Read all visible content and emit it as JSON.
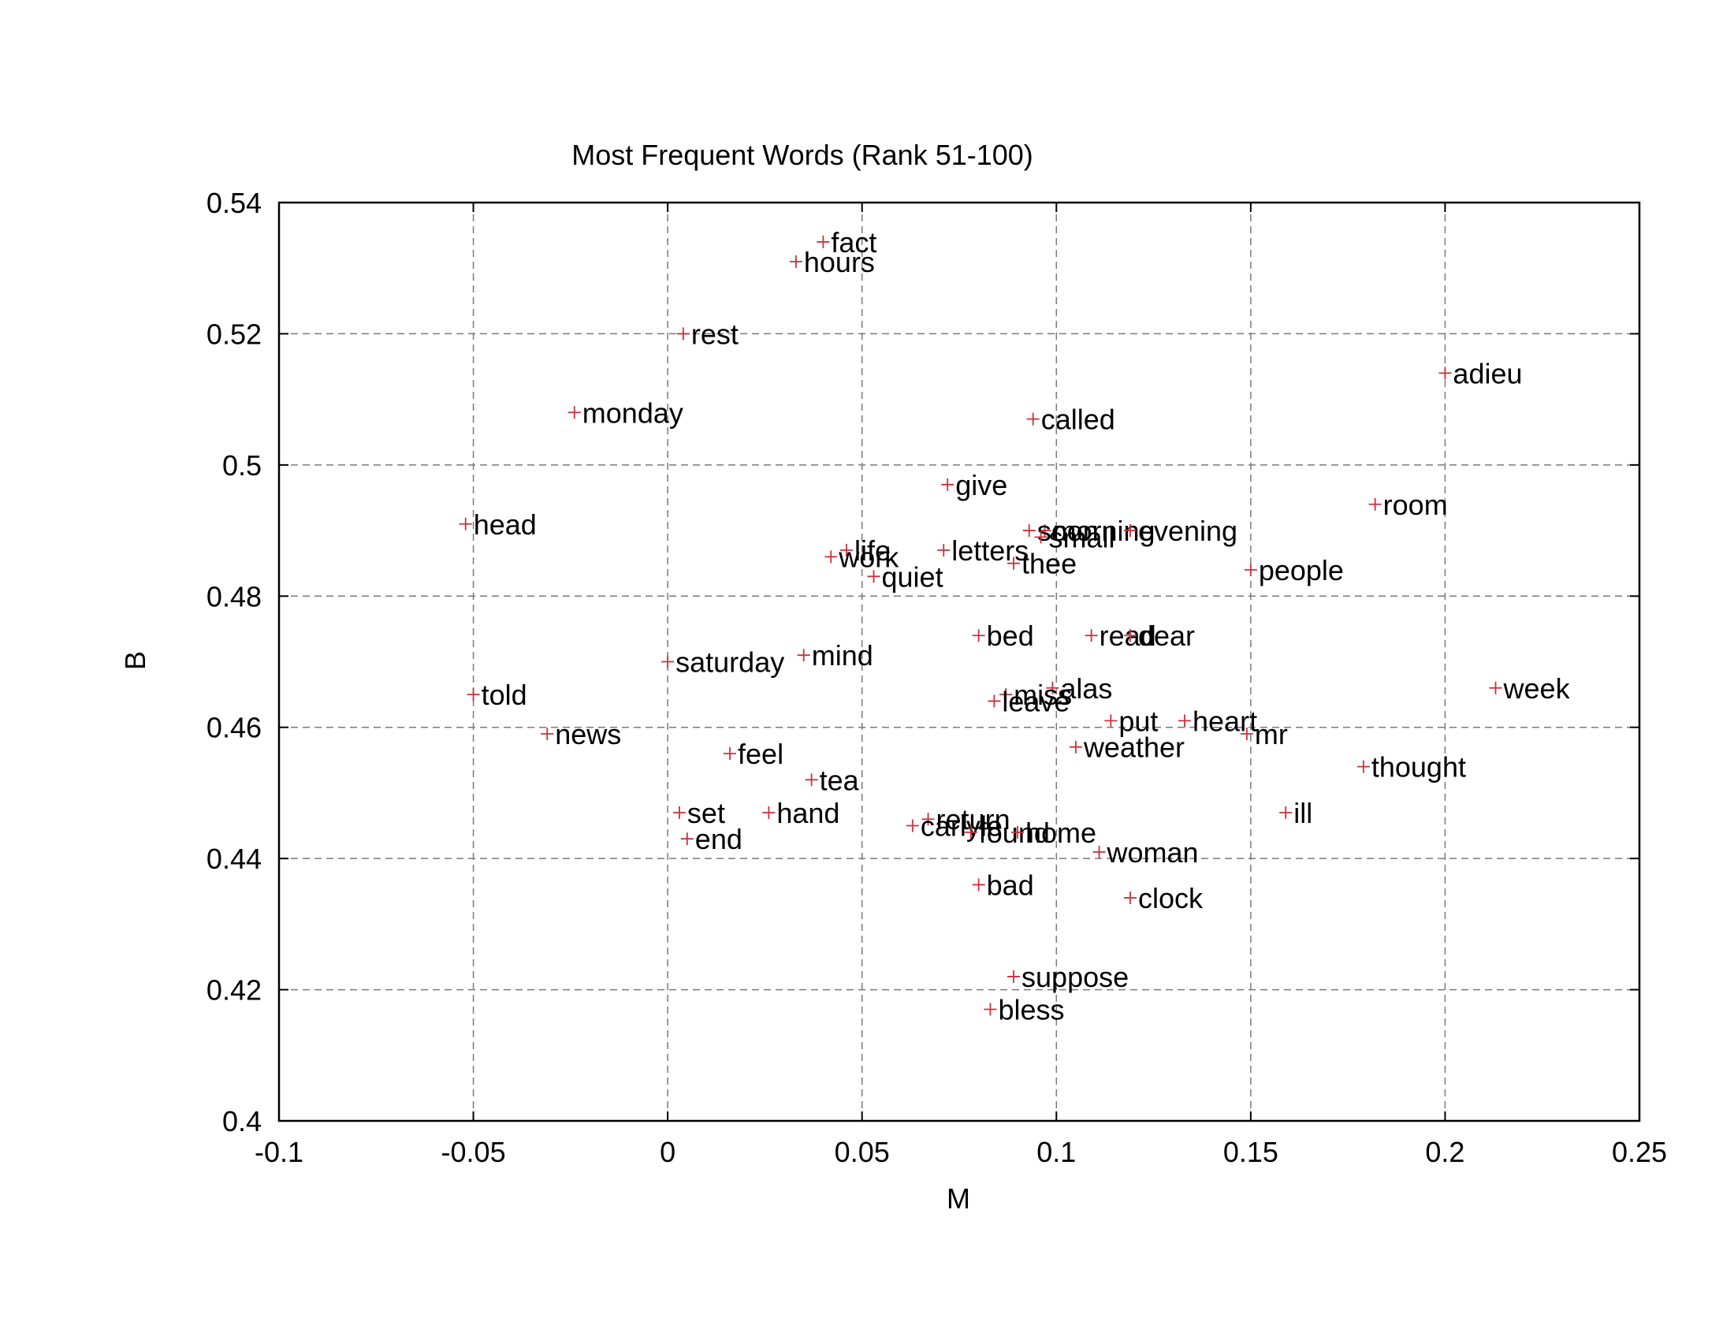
{
  "chart_data": {
    "type": "scatter",
    "title": "Most Frequent Words (Rank 51-100)",
    "xlabel": "M",
    "ylabel": "B",
    "xlim": [
      -0.1,
      0.25
    ],
    "ylim": [
      0.4,
      0.54
    ],
    "xticks": [
      -0.1,
      -0.05,
      0,
      0.05,
      0.1,
      0.15,
      0.2,
      0.25
    ],
    "xtick_labels": [
      "-0.1",
      "-0.05",
      "0",
      "0.05",
      "0.1",
      "0.15",
      "0.2",
      "0.25"
    ],
    "yticks": [
      0.4,
      0.42,
      0.44,
      0.46,
      0.48,
      0.5,
      0.52,
      0.54
    ],
    "ytick_labels": [
      "0.4",
      "0.42",
      "0.44",
      "0.46",
      "0.48",
      "0.5",
      "0.52",
      "0.54"
    ],
    "grid": true,
    "marker_color": "#c8323c",
    "points": [
      {
        "label": "fact",
        "x": 0.04,
        "y": 0.534
      },
      {
        "label": "hours",
        "x": 0.033,
        "y": 0.531
      },
      {
        "label": "rest",
        "x": 0.004,
        "y": 0.52
      },
      {
        "label": "adieu",
        "x": 0.2,
        "y": 0.514
      },
      {
        "label": "monday",
        "x": -0.024,
        "y": 0.508
      },
      {
        "label": "called",
        "x": 0.094,
        "y": 0.507
      },
      {
        "label": "give",
        "x": 0.072,
        "y": 0.497
      },
      {
        "label": "room",
        "x": 0.182,
        "y": 0.494
      },
      {
        "label": "head",
        "x": -0.052,
        "y": 0.491
      },
      {
        "label": "morning",
        "x": 0.097,
        "y": 0.49
      },
      {
        "label": "evening",
        "x": 0.119,
        "y": 0.49
      },
      {
        "label": "soon",
        "x": 0.093,
        "y": 0.49
      },
      {
        "label": "small",
        "x": 0.096,
        "y": 0.489
      },
      {
        "label": "life",
        "x": 0.046,
        "y": 0.487
      },
      {
        "label": "letters",
        "x": 0.071,
        "y": 0.487
      },
      {
        "label": "work",
        "x": 0.042,
        "y": 0.486
      },
      {
        "label": "thee",
        "x": 0.089,
        "y": 0.485
      },
      {
        "label": "people",
        "x": 0.15,
        "y": 0.484
      },
      {
        "label": "quiet",
        "x": 0.053,
        "y": 0.483
      },
      {
        "label": "bed",
        "x": 0.08,
        "y": 0.474
      },
      {
        "label": "read",
        "x": 0.109,
        "y": 0.474
      },
      {
        "label": "dear",
        "x": 0.119,
        "y": 0.474
      },
      {
        "label": "mind",
        "x": 0.035,
        "y": 0.471
      },
      {
        "label": "saturday",
        "x": 0.0,
        "y": 0.47
      },
      {
        "label": "week",
        "x": 0.213,
        "y": 0.466
      },
      {
        "label": "alas",
        "x": 0.099,
        "y": 0.466
      },
      {
        "label": "told",
        "x": -0.05,
        "y": 0.465
      },
      {
        "label": "miss",
        "x": 0.087,
        "y": 0.465
      },
      {
        "label": "leave",
        "x": 0.084,
        "y": 0.464
      },
      {
        "label": "heart",
        "x": 0.133,
        "y": 0.461
      },
      {
        "label": "put",
        "x": 0.114,
        "y": 0.461
      },
      {
        "label": "news",
        "x": -0.031,
        "y": 0.459
      },
      {
        "label": "mr",
        "x": 0.149,
        "y": 0.459
      },
      {
        "label": "weather",
        "x": 0.105,
        "y": 0.457
      },
      {
        "label": "feel",
        "x": 0.016,
        "y": 0.456
      },
      {
        "label": "thought",
        "x": 0.179,
        "y": 0.454
      },
      {
        "label": "tea",
        "x": 0.037,
        "y": 0.452
      },
      {
        "label": "set",
        "x": 0.003,
        "y": 0.447
      },
      {
        "label": "hand",
        "x": 0.026,
        "y": 0.447
      },
      {
        "label": "ill",
        "x": 0.159,
        "y": 0.447
      },
      {
        "label": "return",
        "x": 0.067,
        "y": 0.446
      },
      {
        "label": "carlyle",
        "x": 0.063,
        "y": 0.445
      },
      {
        "label": "found",
        "x": 0.078,
        "y": 0.444
      },
      {
        "label": "home",
        "x": 0.09,
        "y": 0.444
      },
      {
        "label": "end",
        "x": 0.005,
        "y": 0.443
      },
      {
        "label": "woman",
        "x": 0.111,
        "y": 0.441
      },
      {
        "label": "bad",
        "x": 0.08,
        "y": 0.436
      },
      {
        "label": "clock",
        "x": 0.119,
        "y": 0.434
      },
      {
        "label": "suppose",
        "x": 0.089,
        "y": 0.422
      },
      {
        "label": "bless",
        "x": 0.083,
        "y": 0.417
      }
    ]
  }
}
